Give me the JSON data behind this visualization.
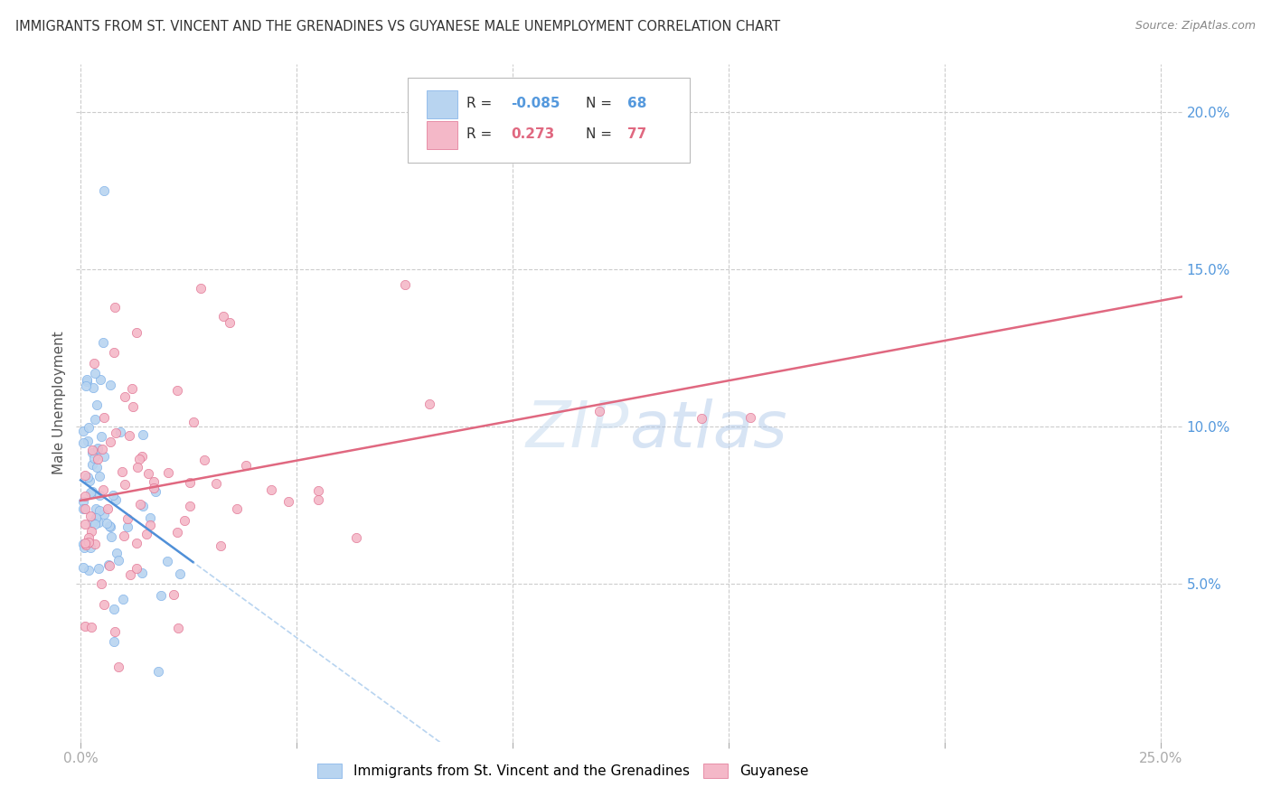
{
  "title": "IMMIGRANTS FROM ST. VINCENT AND THE GRENADINES VS GUYANESE MALE UNEMPLOYMENT CORRELATION CHART",
  "source": "Source: ZipAtlas.com",
  "ylabel": "Male Unemployment",
  "ytick_labels": [
    "20.0%",
    "15.0%",
    "10.0%",
    "5.0%"
  ],
  "ytick_values": [
    0.2,
    0.15,
    0.1,
    0.05
  ],
  "xtick_labels": [
    "0.0%",
    "25.0%"
  ],
  "xtick_values": [
    0.0,
    0.25
  ],
  "xlim": [
    -0.001,
    0.255
  ],
  "ylim": [
    0.0,
    0.215
  ],
  "color_blue": "#b8d4f0",
  "color_blue_edge": "#7aaee8",
  "color_pink": "#f4b8c8",
  "color_pink_edge": "#e07090",
  "color_blue_line": "#5090d8",
  "color_pink_line": "#e06880",
  "color_blue_dashed": "#b8d4f0",
  "color_grid": "#cccccc",
  "grid_linestyle": "--",
  "marker_size": 55,
  "legend_r1_label": "R = ",
  "legend_r1_val": "-0.085",
  "legend_n1_label": "N = ",
  "legend_n1_val": "68",
  "legend_r2_label": "R =  ",
  "legend_r2_val": "0.273",
  "legend_n2_label": "N = ",
  "legend_n2_val": "77",
  "bottom_legend_blue": "Immigrants from St. Vincent and the Grenadines",
  "bottom_legend_pink": "Guyanese"
}
